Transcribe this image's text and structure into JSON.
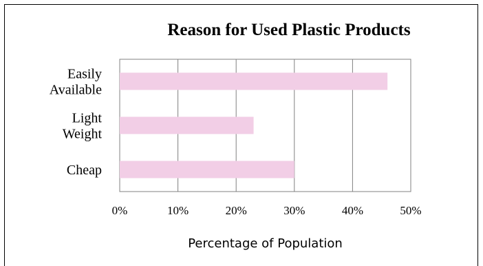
{
  "chart_data": {
    "type": "bar",
    "orientation": "horizontal",
    "title": "Reason for Used Plastic Products",
    "xlabel": "Percentage of Population",
    "ylabel": "",
    "categories": [
      [
        "Easily",
        "Available"
      ],
      [
        "Light",
        "Weight"
      ],
      [
        "Cheap"
      ]
    ],
    "values": [
      0.46,
      0.23,
      0.3
    ],
    "xlim": [
      0,
      0.5
    ],
    "ticks": [
      "0%",
      "10%",
      "20%",
      "30%",
      "40%",
      "50%"
    ],
    "bar_color": "#f2cee6",
    "grid": true,
    "legend": "none"
  }
}
